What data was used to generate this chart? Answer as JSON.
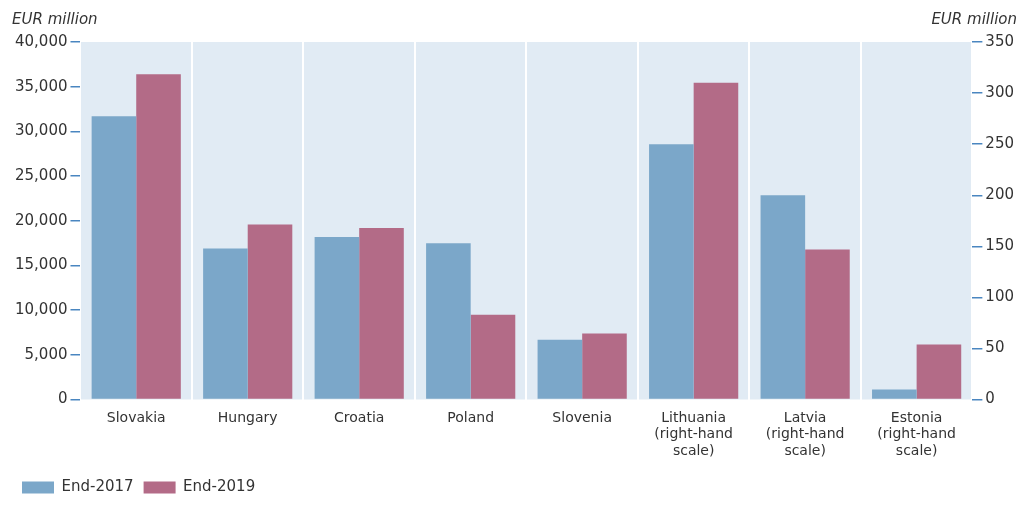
{
  "chart_data": {
    "type": "bar",
    "ylabel": "EUR million",
    "y2label": "EUR million",
    "categories": [
      "Slovakia",
      "Hungary",
      "Croatia",
      "Poland",
      "Slovenia",
      "Lithuania (right-hand scale)",
      "Latvia (right-hand scale)",
      "Estonia (right-hand scale)"
    ],
    "series": [
      {
        "name": "End-2017",
        "color": "#7ba7c9",
        "values": [
          31700,
          16900,
          18200,
          17500,
          6700,
          null,
          null,
          null
        ]
      },
      {
        "name": "End-2019",
        "color": "#b36b87",
        "values": [
          36400,
          19600,
          19200,
          9500,
          7400,
          null,
          null,
          null
        ]
      },
      {
        "color": "#7ba7c9",
        "axis": "y2",
        "values": [
          null,
          null,
          null,
          null,
          null,
          250,
          200,
          10
        ]
      },
      {
        "color": "#b36b87",
        "axis": "y2",
        "values": [
          null,
          null,
          null,
          null,
          null,
          310,
          147,
          54
        ]
      }
    ],
    "ylim": [
      0,
      40000
    ],
    "yticks": [
      0,
      {
        "value": 5000,
        "label": "5,000"
      },
      {
        "value": 10000,
        "label": "10,000"
      },
      {
        "value": 15000,
        "label": "15,000"
      },
      {
        "value": 20000,
        "label": "20,000"
      },
      {
        "value": 25000,
        "label": "25,000"
      },
      {
        "value": 30000,
        "label": "30,000"
      },
      {
        "value": 35000,
        "label": "35,000"
      },
      {
        "value": 40000,
        "label": "40,000"
      }
    ],
    "y2lim": [
      0,
      350
    ],
    "y2ticks": [
      0,
      50,
      100,
      150,
      200,
      250,
      300,
      350
    ],
    "grid": "x",
    "legend": "bottom left"
  }
}
